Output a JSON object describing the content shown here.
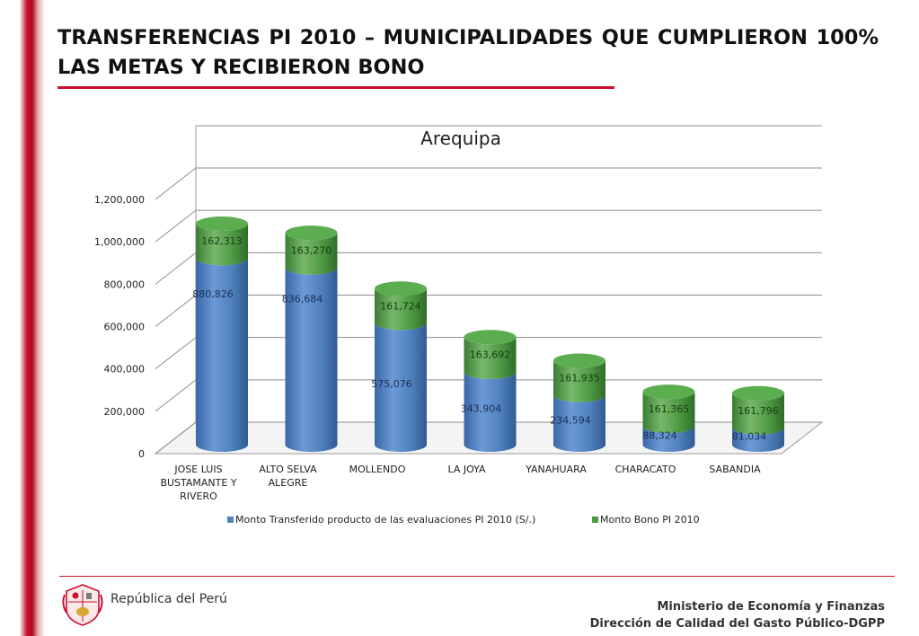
{
  "slide": {
    "title": "TRANSFERENCIAS PI 2010 – MUNICIPALIDADES QUE CUMPLIERON 100% LAS METAS Y RECIBIERON BONO",
    "footer_left": "República del Perú",
    "footer_right_line1": "Ministerio de Economía y Finanzas",
    "footer_right_line2": "Dirección de Calidad del Gasto Público-DGPP"
  },
  "colors": {
    "accent_red": "#c8102e",
    "series_blue": "#4f81bd",
    "series_green": "#4e9a43"
  },
  "chart_data": {
    "type": "bar",
    "stacked": true,
    "three_d": "cylinder",
    "title": "Arequipa",
    "categories": [
      [
        "JOSE LUIS",
        "BUSTAMANTE Y",
        "RIVERO"
      ],
      [
        "ALTO SELVA",
        "ALEGRE"
      ],
      [
        "MOLLENDO"
      ],
      [
        "LA JOYA"
      ],
      [
        "YANAHUARA"
      ],
      [
        "CHARACATO"
      ],
      [
        "SABANDIA"
      ]
    ],
    "series": [
      {
        "name": "Monto Transferido producto de las evaluaciones PI 2010 (S/.)",
        "values": [
          880826,
          836684,
          575076,
          343904,
          234594,
          88324,
          81034
        ],
        "labels": [
          "880,826",
          "836,684",
          "575,076",
          "343,904",
          "234,594",
          "88,324",
          "81,034"
        ]
      },
      {
        "name": "Monto Bono PI 2010",
        "values": [
          162313,
          163270,
          161724,
          163692,
          161935,
          161365,
          161796
        ],
        "labels": [
          "162,313",
          "163,270",
          "161,724",
          "163,692",
          "161,935",
          "161,365",
          "161,796"
        ]
      }
    ],
    "yticks": [
      0,
      200000,
      400000,
      600000,
      800000,
      1000000,
      1200000
    ],
    "ytick_labels": [
      "0",
      "200,000",
      "400,000",
      "600,000",
      "800,000",
      "1,000,000",
      "1,200,000"
    ],
    "ylim": [
      0,
      1200000
    ],
    "grid": true,
    "legend_position": "bottom"
  }
}
